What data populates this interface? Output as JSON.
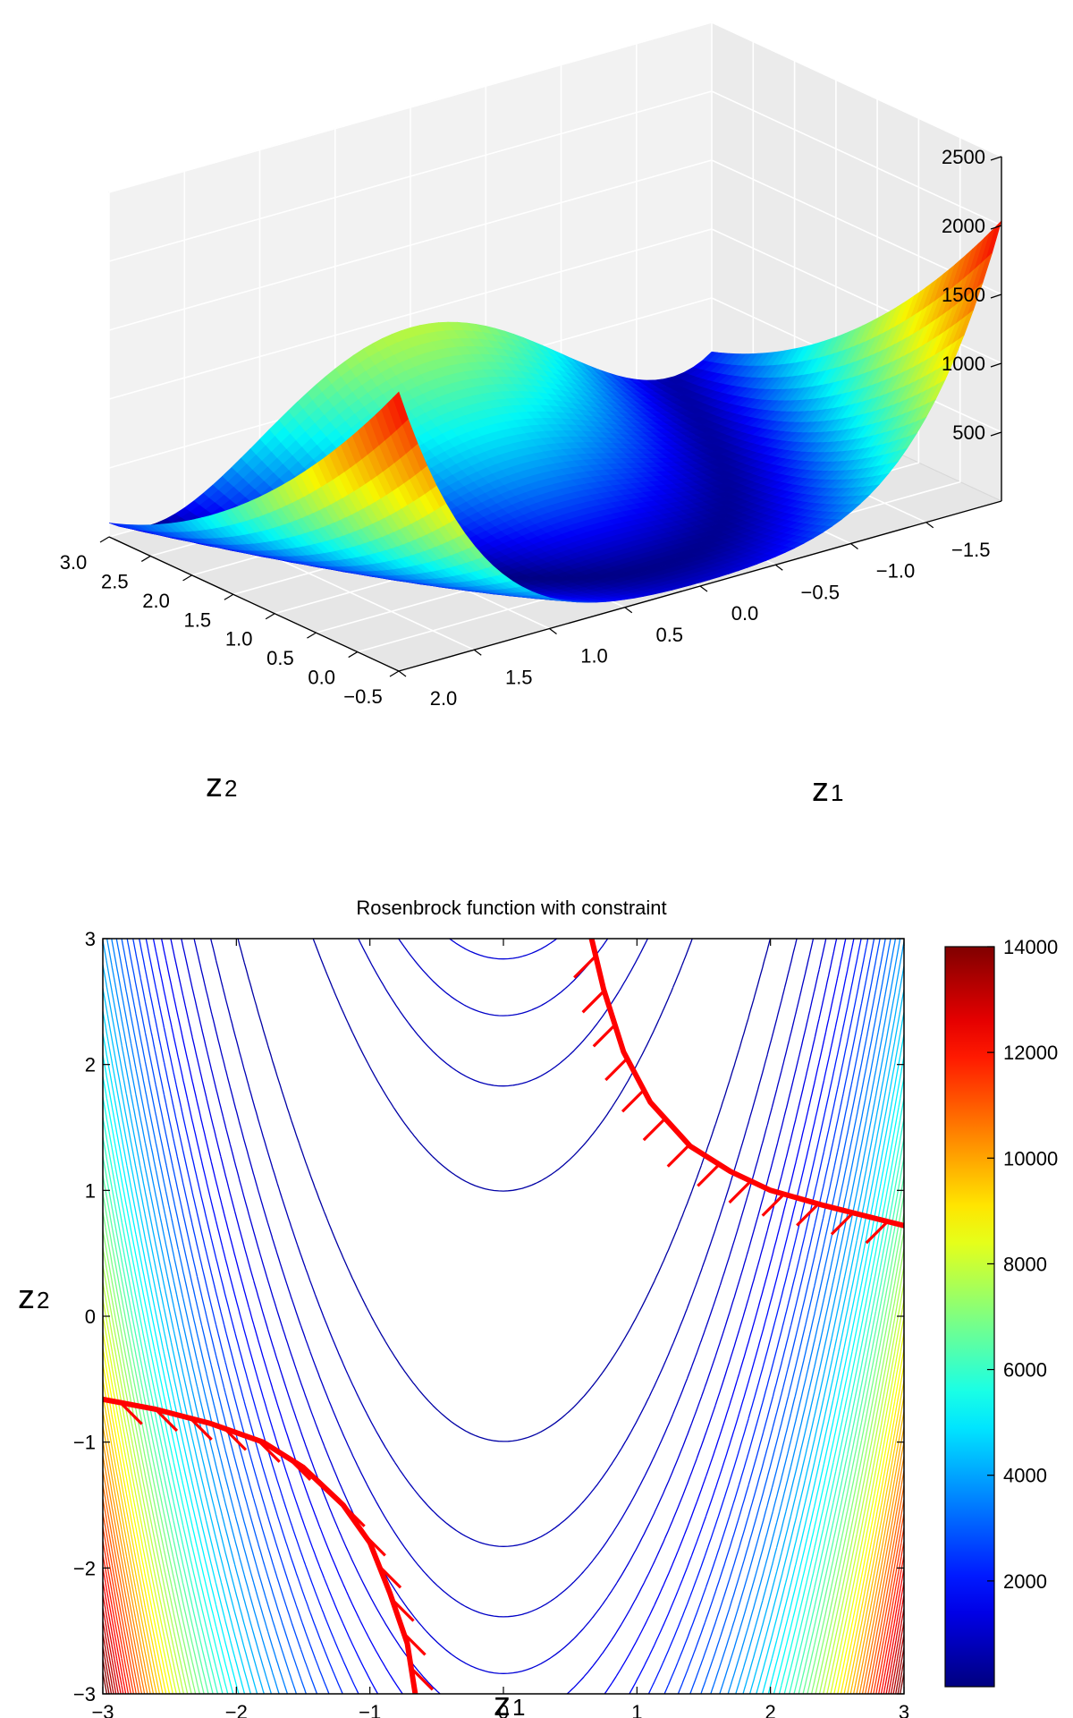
{
  "chart_data": [
    {
      "type": "surface",
      "title": "",
      "function": "rosenbrock",
      "x": {
        "label": "z",
        "label_sub": "1",
        "range": [
          -2.0,
          2.0
        ],
        "ticks": [
          "−1.5",
          "−1.0",
          "−0.5",
          "0.0",
          "0.5",
          "1.0",
          "1.5",
          "2.0"
        ]
      },
      "y": {
        "label": "z",
        "label_sub": "2",
        "range": [
          -0.5,
          3.0
        ],
        "ticks": [
          "−0.5",
          "0.0",
          "0.5",
          "1.0",
          "1.5",
          "2.0",
          "2.5",
          "3.0"
        ]
      },
      "z": {
        "label": "",
        "range": [
          0,
          2500
        ],
        "ticks": [
          "500",
          "1000",
          "1500",
          "2000",
          "2500"
        ]
      },
      "colormap": "jet",
      "grid": true
    },
    {
      "type": "contour",
      "title": "Rosenbrock function with constraint",
      "function": "rosenbrock",
      "x": {
        "label": "z",
        "label_sub": "1",
        "range": [
          -3,
          3
        ],
        "ticks": [
          "−3",
          "−2",
          "−1",
          "0",
          "1",
          "2",
          "3"
        ]
      },
      "y": {
        "label": "z",
        "label_sub": "2",
        "range": [
          -3,
          3
        ],
        "ticks": [
          "−3",
          "−2",
          "−1",
          "0",
          "1",
          "2",
          "3"
        ]
      },
      "levels": {
        "min": 100,
        "max": 14000,
        "count": 60
      },
      "colorbar": {
        "range": [
          0,
          14000
        ],
        "ticks": [
          "2000",
          "4000",
          "6000",
          "8000",
          "10000",
          "12000",
          "14000"
        ]
      },
      "constraint": {
        "color": "#ff0000",
        "upper_branch": [
          [
            0.66,
            3.0
          ],
          [
            0.75,
            2.6
          ],
          [
            0.9,
            2.1
          ],
          [
            1.1,
            1.7
          ],
          [
            1.4,
            1.35
          ],
          [
            1.7,
            1.15
          ],
          [
            2.0,
            1.0
          ],
          [
            2.4,
            0.88
          ],
          [
            2.7,
            0.8
          ],
          [
            3.0,
            0.72
          ]
        ],
        "lower_branch": [
          [
            -3.0,
            -0.66
          ],
          [
            -2.6,
            -0.74
          ],
          [
            -2.2,
            -0.85
          ],
          [
            -1.8,
            -1.0
          ],
          [
            -1.5,
            -1.2
          ],
          [
            -1.2,
            -1.5
          ],
          [
            -1.0,
            -1.8
          ],
          [
            -0.85,
            -2.2
          ],
          [
            -0.72,
            -2.6
          ],
          [
            -0.66,
            -3.0
          ]
        ]
      }
    }
  ]
}
